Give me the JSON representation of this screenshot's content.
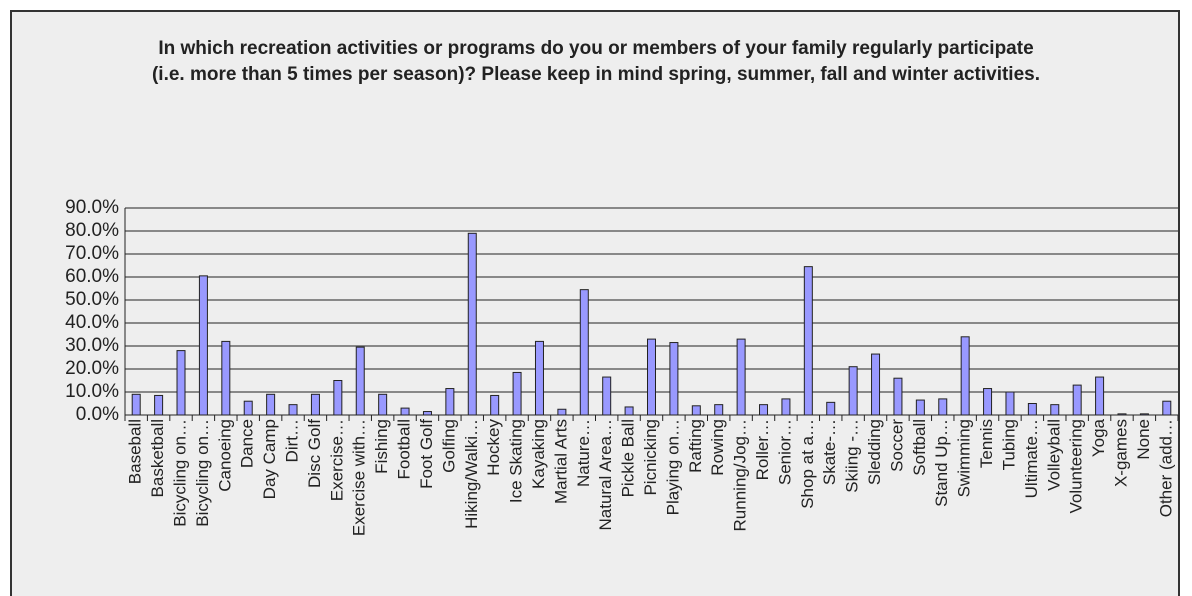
{
  "chart_data": {
    "type": "bar",
    "title": "In which recreation activities or programs do you or members of your family regularly participate (i.e. more than 5 times per season)? Please keep in mind spring, summer, fall and winter activities.",
    "categories": [
      "Baseball",
      "Basketball",
      "Bicycling on…",
      "Bicycling on…",
      "Canoeing",
      "Dance",
      "Day Camp",
      "Dirt…",
      "Disc Golf",
      "Exercise…",
      "Exercise with…",
      "Fishing",
      "Football",
      "Foot Golf",
      "Golfing",
      "Hiking/Walki…",
      "Hockey",
      "Ice Skating",
      "Kayaking",
      "Martial Arts",
      "Nature…",
      "Natural Area…",
      "Pickle Ball",
      "Picnicking",
      "Playing on…",
      "Rafting",
      "Rowing",
      "Running/Jog…",
      "Roller…",
      "Senior…",
      "Shop at a…",
      "Skate-…",
      "Skiing -…",
      "Sledding",
      "Soccer",
      "Softball",
      "Stand Up…",
      "Swimming",
      "Tennis",
      "Tubing",
      "Ultimate…",
      "Volleyball",
      "Volunteering",
      "Yoga",
      "X-games",
      "None",
      "Other (add…"
    ],
    "values": [
      9,
      8.5,
      28,
      60.5,
      32,
      6,
      9,
      4.5,
      9,
      15,
      29.5,
      9,
      3,
      1.5,
      11.5,
      79,
      8.5,
      18.5,
      32,
      2.5,
      54.5,
      16.5,
      3.5,
      33,
      31.5,
      4,
      4.5,
      33,
      4.5,
      7,
      64.5,
      5.5,
      21,
      26.5,
      16,
      6.5,
      7,
      34,
      11.5,
      10,
      5,
      4.5,
      13,
      16.5,
      0.5,
      0.5,
      6
    ],
    "color": "#9999ff",
    "ylim": [
      0,
      90
    ],
    "yticks": [
      {
        "value": 0,
        "label": "0.0%"
      },
      {
        "value": 10,
        "label": "10.0%"
      },
      {
        "value": 20,
        "label": "20.0%"
      },
      {
        "value": 30,
        "label": "30.0%"
      },
      {
        "value": 40,
        "label": "40.0%"
      },
      {
        "value": 50,
        "label": "50.0%"
      },
      {
        "value": 60,
        "label": "60.0%"
      },
      {
        "value": 70,
        "label": "70.0%"
      },
      {
        "value": 80,
        "label": "80.0%"
      },
      {
        "value": 90,
        "label": "90.0%"
      }
    ],
    "grid": true
  }
}
